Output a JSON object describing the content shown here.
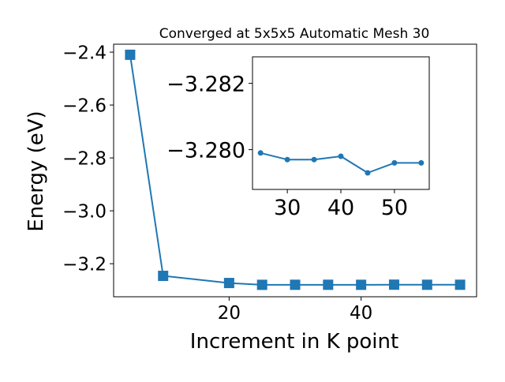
{
  "accent_color": "#1f77b4",
  "chart_data": [
    {
      "type": "line",
      "role": "main",
      "title": "Converged at 5x5x5 Automatic Mesh 30",
      "xlabel": "Increment in K point",
      "ylabel": "Energy (eV)",
      "marker": "square",
      "grid": false,
      "legend": "none",
      "xlim": [
        2.5,
        57.5
      ],
      "ylim": [
        -3.325,
        -2.37
      ],
      "xticks": [
        20,
        40
      ],
      "xtick_labels": [
        "20",
        "40"
      ],
      "yticks": [
        -3.2,
        -3.0,
        -2.8,
        -2.6,
        -2.4
      ],
      "ytick_labels": [
        "−3.2",
        "−3.0",
        "−2.8",
        "−2.6",
        "−2.4"
      ],
      "series": [
        {
          "x": [
            5,
            10,
            20,
            25,
            30,
            35,
            40,
            45,
            50,
            55
          ],
          "y": [
            -2.41,
            -3.246,
            -3.273,
            -3.2799,
            -3.2797,
            -3.2797,
            -3.2798,
            -3.2793,
            -3.2796,
            -3.2796
          ]
        }
      ]
    },
    {
      "type": "line",
      "role": "inset",
      "title": "",
      "xlabel": "",
      "ylabel": "",
      "marker": "circle",
      "grid": false,
      "legend": "none",
      "xlim": [
        23.5,
        56.5
      ],
      "ylim": [
        -3.2788,
        -3.2828
      ],
      "xticks": [
        30,
        40,
        50
      ],
      "xtick_labels": [
        "30",
        "40",
        "50"
      ],
      "yticks": [
        -3.28,
        -3.282
      ],
      "ytick_labels": [
        "−3.280",
        "−3.282"
      ],
      "series": [
        {
          "x": [
            25,
            30,
            35,
            40,
            45,
            50,
            55
          ],
          "y": [
            -3.2799,
            -3.2797,
            -3.2797,
            -3.2798,
            -3.2793,
            -3.2796,
            -3.2796
          ]
        }
      ]
    }
  ]
}
